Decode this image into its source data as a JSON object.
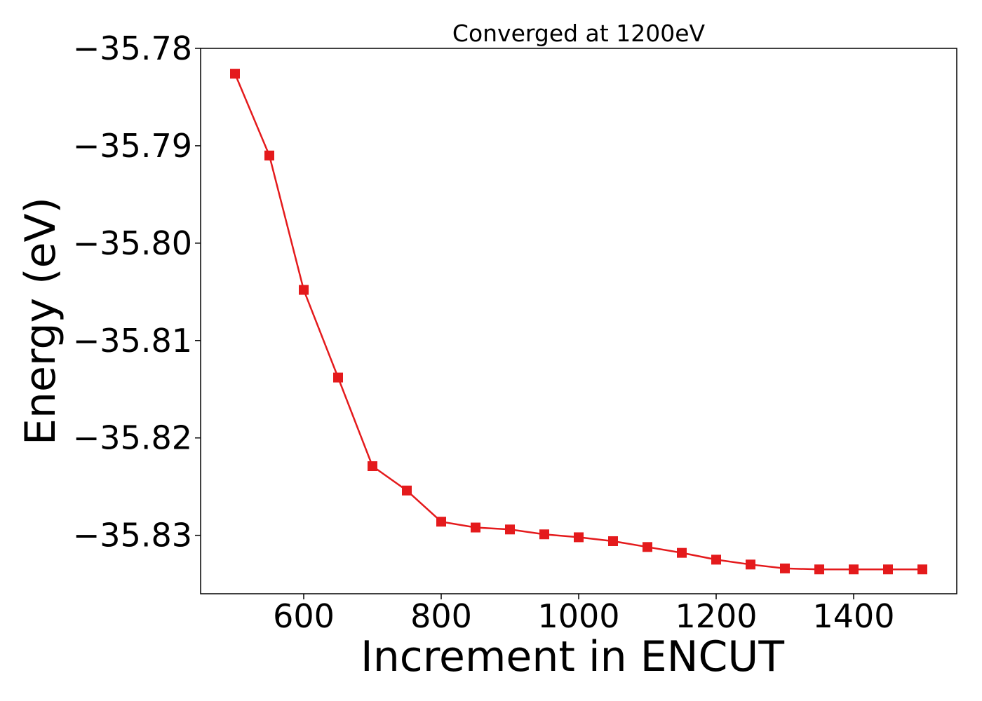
{
  "chart_data": {
    "type": "line",
    "title": "Converged at 1200eV",
    "xlabel": "Increment in ENCUT",
    "ylabel": "Energy (eV)",
    "xlim": [
      450,
      1550
    ],
    "ylim": [
      -35.836,
      -35.78
    ],
    "x_ticks": [
      600,
      800,
      1000,
      1200,
      1400
    ],
    "x_tick_labels": [
      "600",
      "800",
      "1000",
      "1200",
      "1400"
    ],
    "y_ticks": [
      -35.78,
      -35.79,
      -35.8,
      -35.81,
      -35.82,
      -35.83
    ],
    "y_tick_labels": [
      "−35.78",
      "−35.79",
      "−35.80",
      "−35.81",
      "−35.82",
      "−35.83"
    ],
    "grid": false,
    "series": [
      {
        "color": "#e41a1c",
        "marker": "square",
        "x": [
          500,
          550,
          600,
          650,
          700,
          750,
          800,
          850,
          900,
          950,
          1000,
          1050,
          1100,
          1150,
          1200,
          1250,
          1300,
          1350,
          1400,
          1450,
          1500
        ],
        "y": [
          -35.7826,
          -35.791,
          -35.8048,
          -35.8138,
          -35.8229,
          -35.8254,
          -35.8286,
          -35.8292,
          -35.8294,
          -35.8299,
          -35.8302,
          -35.8306,
          -35.8312,
          -35.8318,
          -35.8325,
          -35.833,
          -35.8334,
          -35.8335,
          -35.8335,
          -35.8335,
          -35.8335
        ]
      }
    ]
  }
}
